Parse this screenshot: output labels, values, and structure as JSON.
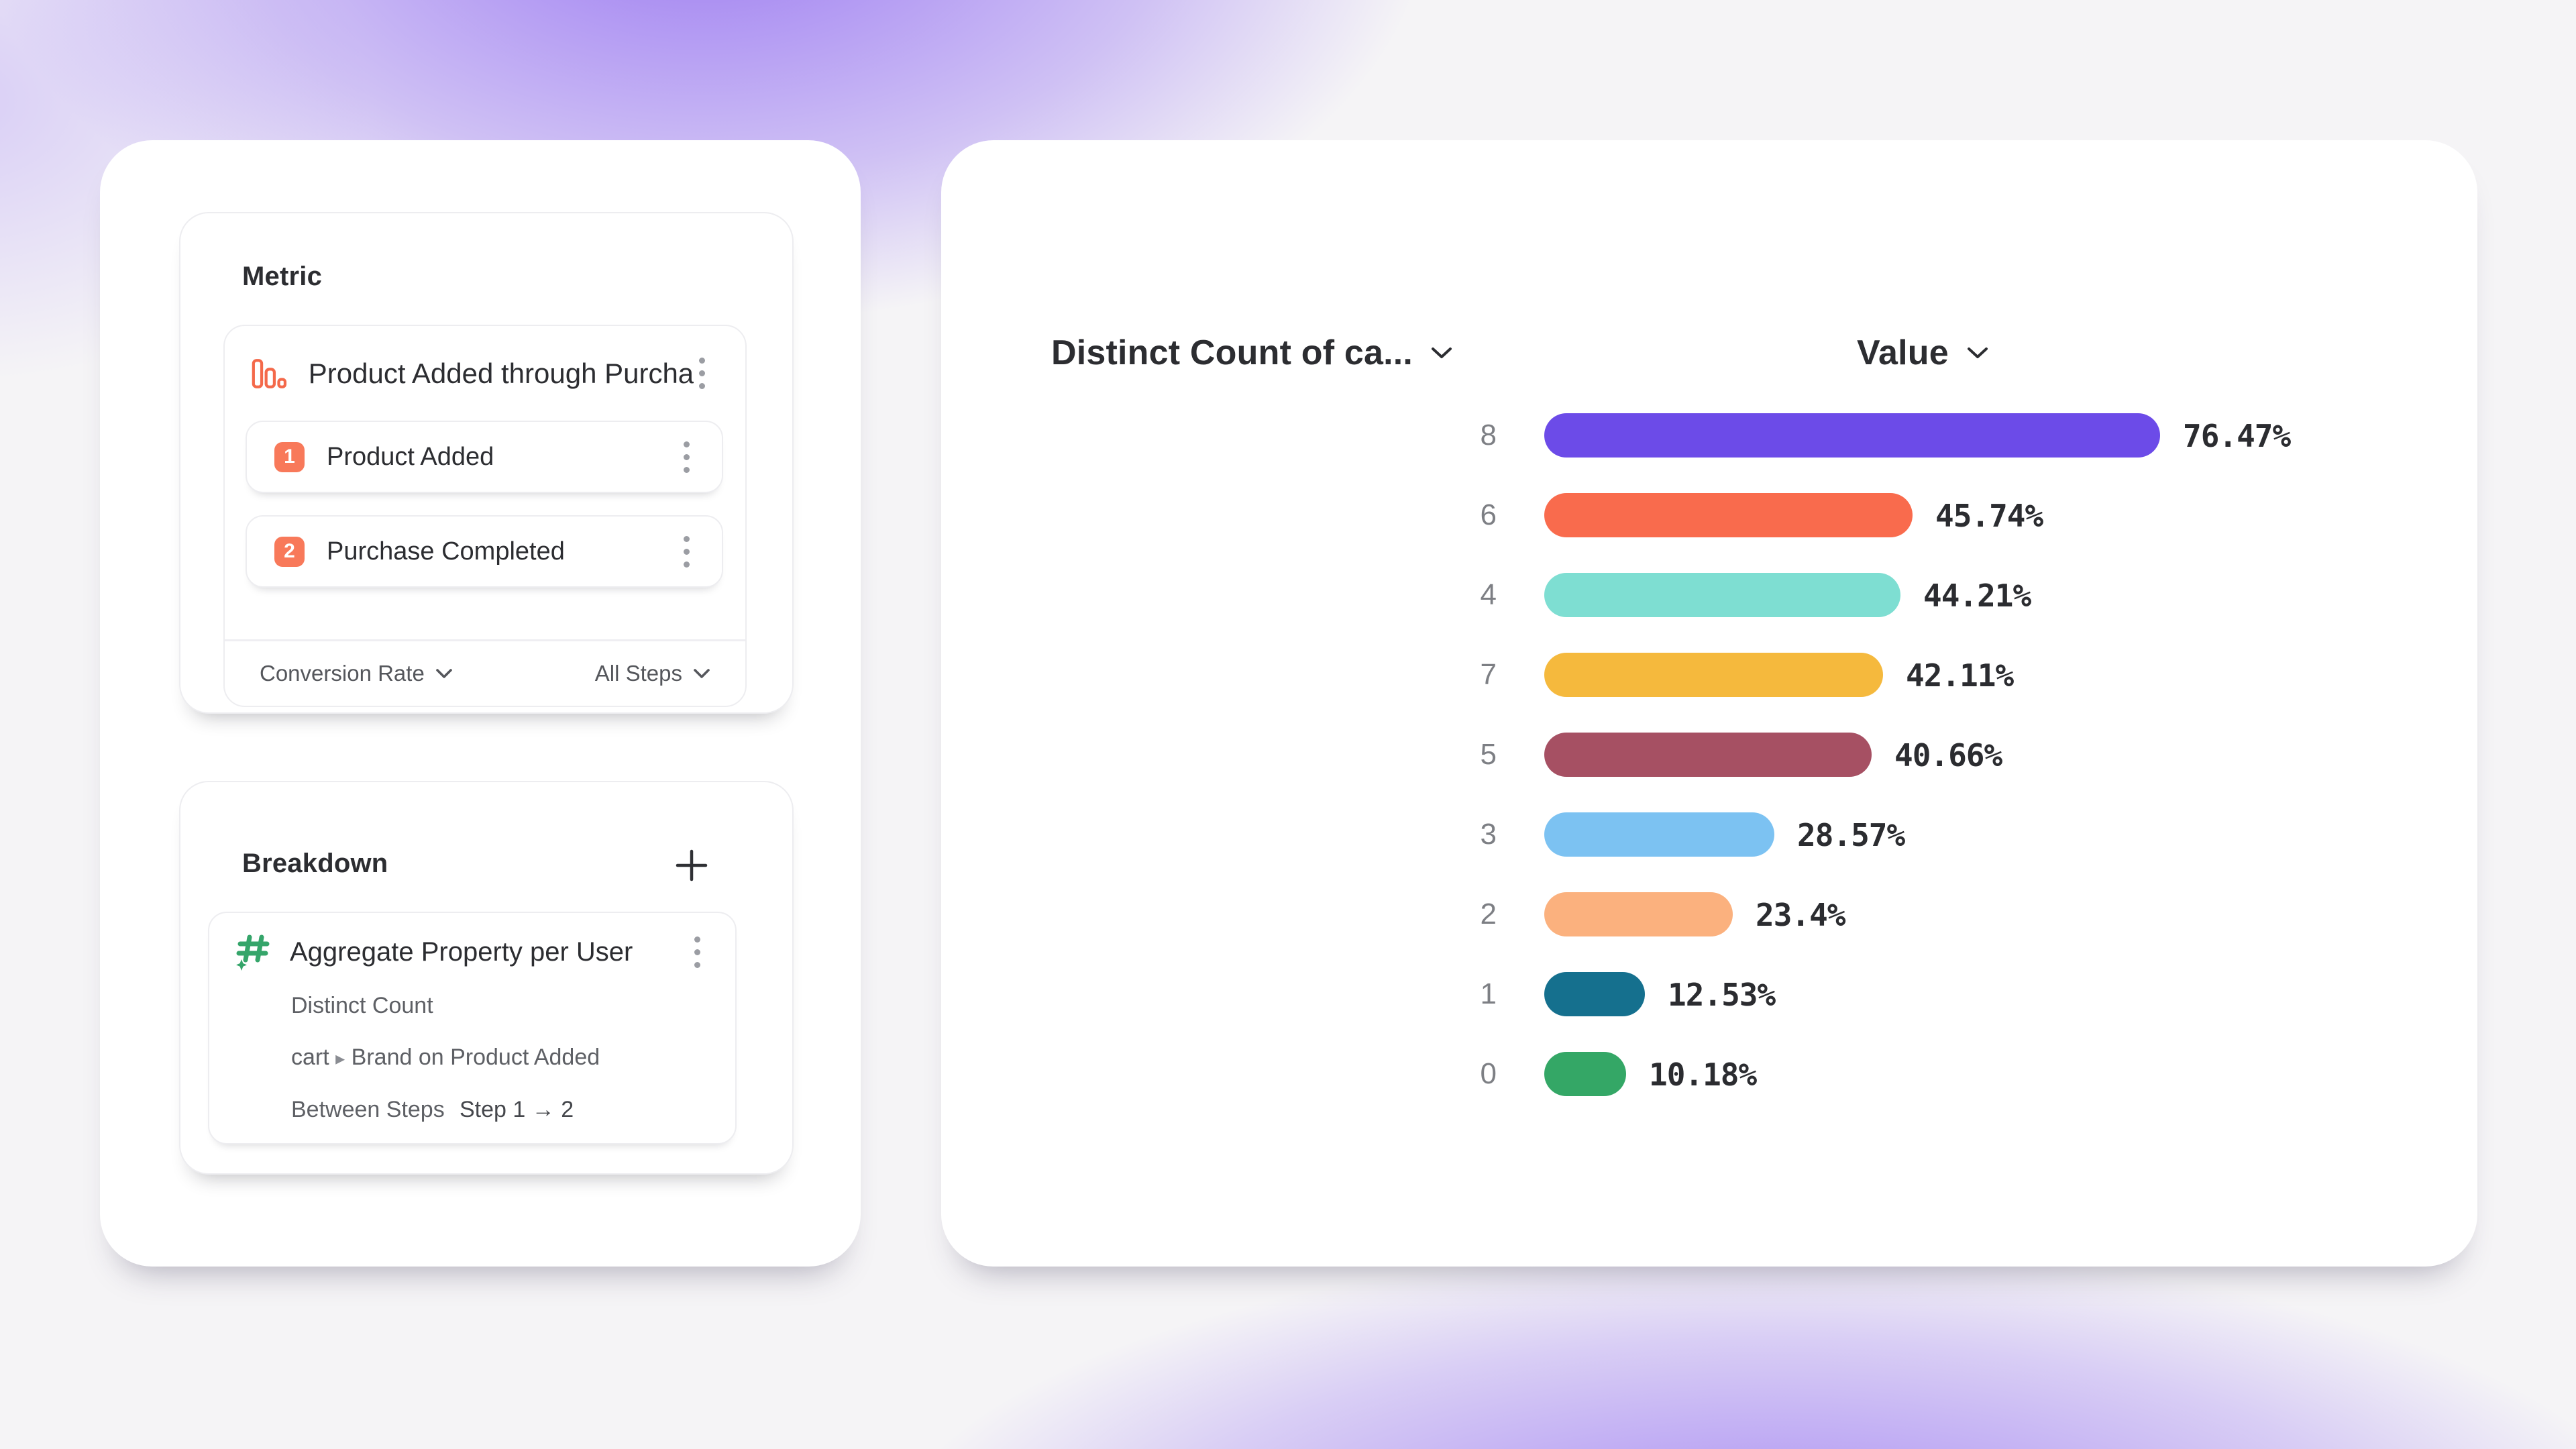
{
  "colors": {
    "accent_orange": "#F8795A",
    "icon_orange": "#F4694A",
    "icon_green": "#35A56A",
    "kebab_gray": "#9b9da3",
    "chevron_gray": "#55575c"
  },
  "metric_panel": {
    "title": "Metric",
    "funnel": {
      "name": "Product Added through Purcha...",
      "steps": [
        {
          "num": "1",
          "label": "Product Added"
        },
        {
          "num": "2",
          "label": "Purchase Completed"
        }
      ],
      "measure_label": "Conversion Rate",
      "steps_filter_label": "All Steps"
    }
  },
  "breakdown_panel": {
    "title": "Breakdown",
    "item": {
      "name": "Aggregate Property per User",
      "aggregation": "Distinct Count",
      "property_left": "cart",
      "property_caret": "▸",
      "property_right": "Brand on Product Added",
      "scope_label": "Between Steps",
      "scope_value": "Step 1 → 2"
    }
  },
  "chart_data": {
    "type": "bar",
    "orientation": "horizontal",
    "left_header": "Distinct Count of ca...",
    "right_header": "Value",
    "categories": [
      "8",
      "6",
      "4",
      "7",
      "5",
      "3",
      "2",
      "1",
      "0"
    ],
    "values": [
      76.47,
      45.74,
      44.21,
      42.11,
      40.66,
      28.57,
      23.4,
      12.53,
      10.18
    ],
    "value_labels": [
      "76.47%",
      "45.74%",
      "44.21%",
      "42.11%",
      "40.66%",
      "28.57%",
      "23.4%",
      "12.53%",
      "10.18%"
    ],
    "bar_colors": [
      "#6C4BE8",
      "#F96B4D",
      "#7EDED2",
      "#F5B93D",
      "#A65063",
      "#7CC2F2",
      "#FBB17E",
      "#15708E",
      "#34A766"
    ],
    "xlim": [
      0,
      100
    ],
    "unit": "%",
    "legend": "none",
    "grid": false
  }
}
